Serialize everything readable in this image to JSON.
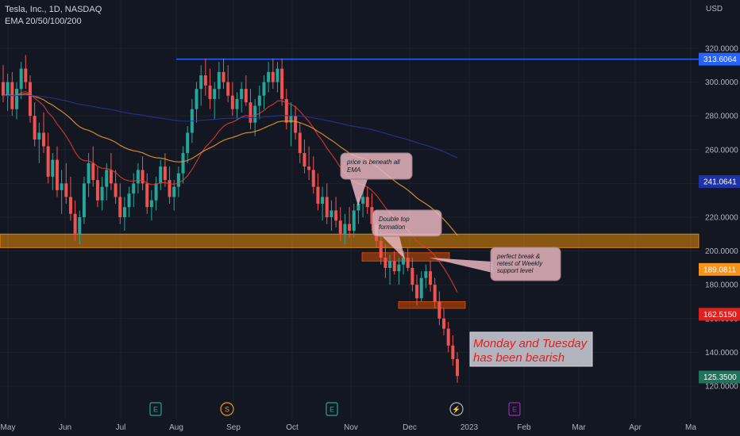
{
  "header": {
    "symbol_line": "Tesla, Inc., 1D, NASDAQ",
    "indicator_line": "EMA 20/50/100/200"
  },
  "currency": "USD",
  "chart_data": {
    "type": "candlestick",
    "y_axis_ticks": [
      "320.0000",
      "300.0000",
      "280.0000",
      "260.0000",
      "240.0000",
      "220.0000",
      "200.0000",
      "180.0000",
      "160.0000",
      "140.0000",
      "120.0000"
    ],
    "ylim": [
      117,
      340
    ],
    "x_axis_ticks": [
      "May",
      "Jun",
      "Jul",
      "Aug",
      "Sep",
      "Oct",
      "Nov",
      "Dec",
      "2023",
      "Feb",
      "Mar",
      "Apr",
      "Ma"
    ],
    "price_labels": [
      {
        "value": 313.6064,
        "text": "313.6064",
        "color": "#2962ff"
      },
      {
        "value": 241.0641,
        "text": "241.0641",
        "color": "#1e33a8"
      },
      {
        "value": 189.0811,
        "text": "189.0811",
        "color": "#f7931a"
      },
      {
        "value": 162.515,
        "text": "162.5150",
        "color": "#e0201c"
      },
      {
        "value": 125.35,
        "text": "125.3500",
        "color": "#22735e"
      }
    ],
    "ohlc": [
      [
        300,
        310,
        288,
        292
      ],
      [
        292,
        305,
        283,
        300
      ],
      [
        300,
        306,
        280,
        284
      ],
      [
        284,
        300,
        278,
        296
      ],
      [
        296,
        312,
        290,
        308
      ],
      [
        308,
        316,
        296,
        300
      ],
      [
        300,
        304,
        276,
        280
      ],
      [
        280,
        288,
        262,
        266
      ],
      [
        266,
        276,
        252,
        270
      ],
      [
        270,
        282,
        258,
        262
      ],
      [
        262,
        270,
        240,
        244
      ],
      [
        244,
        258,
        236,
        254
      ],
      [
        254,
        262,
        232,
        236
      ],
      [
        236,
        248,
        222,
        240
      ],
      [
        240,
        252,
        228,
        232
      ],
      [
        232,
        244,
        218,
        222
      ],
      [
        222,
        230,
        206,
        210
      ],
      [
        210,
        224,
        204,
        220
      ],
      [
        220,
        244,
        216,
        240
      ],
      [
        240,
        258,
        232,
        252
      ],
      [
        252,
        262,
        238,
        242
      ],
      [
        242,
        250,
        226,
        230
      ],
      [
        230,
        244,
        224,
        238
      ],
      [
        238,
        252,
        230,
        248
      ],
      [
        248,
        258,
        236,
        240
      ],
      [
        240,
        248,
        228,
        232
      ],
      [
        232,
        240,
        216,
        220
      ],
      [
        220,
        232,
        212,
        226
      ],
      [
        226,
        238,
        220,
        234
      ],
      [
        234,
        246,
        226,
        240
      ],
      [
        240,
        252,
        234,
        248
      ],
      [
        248,
        256,
        236,
        240
      ],
      [
        240,
        246,
        222,
        226
      ],
      [
        226,
        236,
        218,
        230
      ],
      [
        230,
        244,
        224,
        240
      ],
      [
        240,
        254,
        236,
        250
      ],
      [
        250,
        258,
        238,
        242
      ],
      [
        242,
        250,
        228,
        232
      ],
      [
        232,
        242,
        224,
        238
      ],
      [
        238,
        250,
        232,
        246
      ],
      [
        246,
        262,
        240,
        258
      ],
      [
        258,
        274,
        252,
        270
      ],
      [
        270,
        290,
        264,
        284
      ],
      [
        284,
        300,
        276,
        296
      ],
      [
        296,
        310,
        286,
        304
      ],
      [
        304,
        314,
        292,
        298
      ],
      [
        298,
        308,
        284,
        290
      ],
      [
        290,
        300,
        278,
        296
      ],
      [
        296,
        312,
        290,
        306
      ],
      [
        306,
        314,
        296,
        300
      ],
      [
        300,
        310,
        288,
        292
      ],
      [
        292,
        300,
        280,
        284
      ],
      [
        284,
        294,
        278,
        290
      ],
      [
        290,
        300,
        282,
        296
      ],
      [
        296,
        304,
        286,
        288
      ],
      [
        288,
        296,
        272,
        276
      ],
      [
        276,
        290,
        268,
        286
      ],
      [
        286,
        298,
        278,
        292
      ],
      [
        292,
        304,
        284,
        300
      ],
      [
        300,
        312,
        294,
        306
      ],
      [
        306,
        314,
        296,
        300
      ],
      [
        300,
        312,
        294,
        308
      ],
      [
        308,
        314,
        286,
        290
      ],
      [
        290,
        296,
        272,
        276
      ],
      [
        276,
        288,
        262,
        280
      ],
      [
        280,
        286,
        266,
        270
      ],
      [
        270,
        276,
        252,
        258
      ],
      [
        258,
        266,
        246,
        250
      ],
      [
        250,
        262,
        242,
        248
      ],
      [
        248,
        256,
        234,
        238
      ],
      [
        238,
        246,
        224,
        228
      ],
      [
        228,
        238,
        218,
        232
      ],
      [
        232,
        240,
        216,
        220
      ],
      [
        220,
        230,
        212,
        224
      ],
      [
        224,
        232,
        214,
        218
      ],
      [
        218,
        226,
        206,
        210
      ],
      [
        210,
        222,
        204,
        216
      ],
      [
        216,
        226,
        208,
        212
      ],
      [
        212,
        228,
        208,
        224
      ],
      [
        224,
        232,
        216,
        228
      ],
      [
        228,
        236,
        220,
        232
      ],
      [
        232,
        238,
        222,
        226
      ],
      [
        226,
        234,
        212,
        216
      ],
      [
        216,
        224,
        202,
        206
      ],
      [
        206,
        212,
        192,
        196
      ],
      [
        196,
        204,
        184,
        190
      ],
      [
        190,
        198,
        180,
        194
      ],
      [
        194,
        200,
        186,
        188
      ],
      [
        188,
        196,
        180,
        192
      ],
      [
        192,
        200,
        186,
        196
      ],
      [
        196,
        202,
        188,
        190
      ],
      [
        190,
        196,
        176,
        180
      ],
      [
        180,
        186,
        168,
        172
      ],
      [
        172,
        188,
        170,
        184
      ],
      [
        184,
        192,
        178,
        188
      ],
      [
        188,
        194,
        176,
        180
      ],
      [
        180,
        184,
        166,
        170
      ],
      [
        170,
        176,
        156,
        160
      ],
      [
        160,
        166,
        150,
        154
      ],
      [
        154,
        158,
        140,
        144
      ],
      [
        144,
        150,
        132,
        136
      ],
      [
        136,
        140,
        122,
        126
      ]
    ],
    "ema_lines": [
      {
        "name": "EMA 20",
        "color": "#e53935"
      },
      {
        "name": "EMA 50",
        "color": "#f39c34"
      },
      {
        "name": "EMA 200",
        "color": "#283593"
      }
    ],
    "annotations": [
      {
        "text_lines": [
          "price is beneath all",
          "EMA"
        ]
      },
      {
        "text_lines": [
          "Double top",
          "formation"
        ]
      },
      {
        "text_lines": [
          "perfect break &",
          "retest of Weekly",
          "support level"
        ]
      },
      {
        "text_lines": [
          "Monday and Tuesday",
          "has been bearish"
        ]
      }
    ],
    "zones": [
      {
        "name": "support-zone",
        "low": 202,
        "high": 210,
        "color": "#ff9800"
      },
      {
        "name": "retest-zone",
        "low": 194,
        "high": 199,
        "color": "#e65100"
      },
      {
        "name": "lower-zone",
        "low": 166,
        "high": 170,
        "color": "#e65100"
      }
    ],
    "resistance_line": {
      "value": 313.6064,
      "color": "#2962ff"
    }
  },
  "event_markers": [
    {
      "letter": "E",
      "color": "#26a69a"
    },
    {
      "letter": "S",
      "color": "#f7931a"
    },
    {
      "letter": "E",
      "color": "#26a69a"
    },
    {
      "letter": "⚡",
      "color": "#b2b5be"
    },
    {
      "letter": "E",
      "color": "#9c27b0"
    }
  ]
}
